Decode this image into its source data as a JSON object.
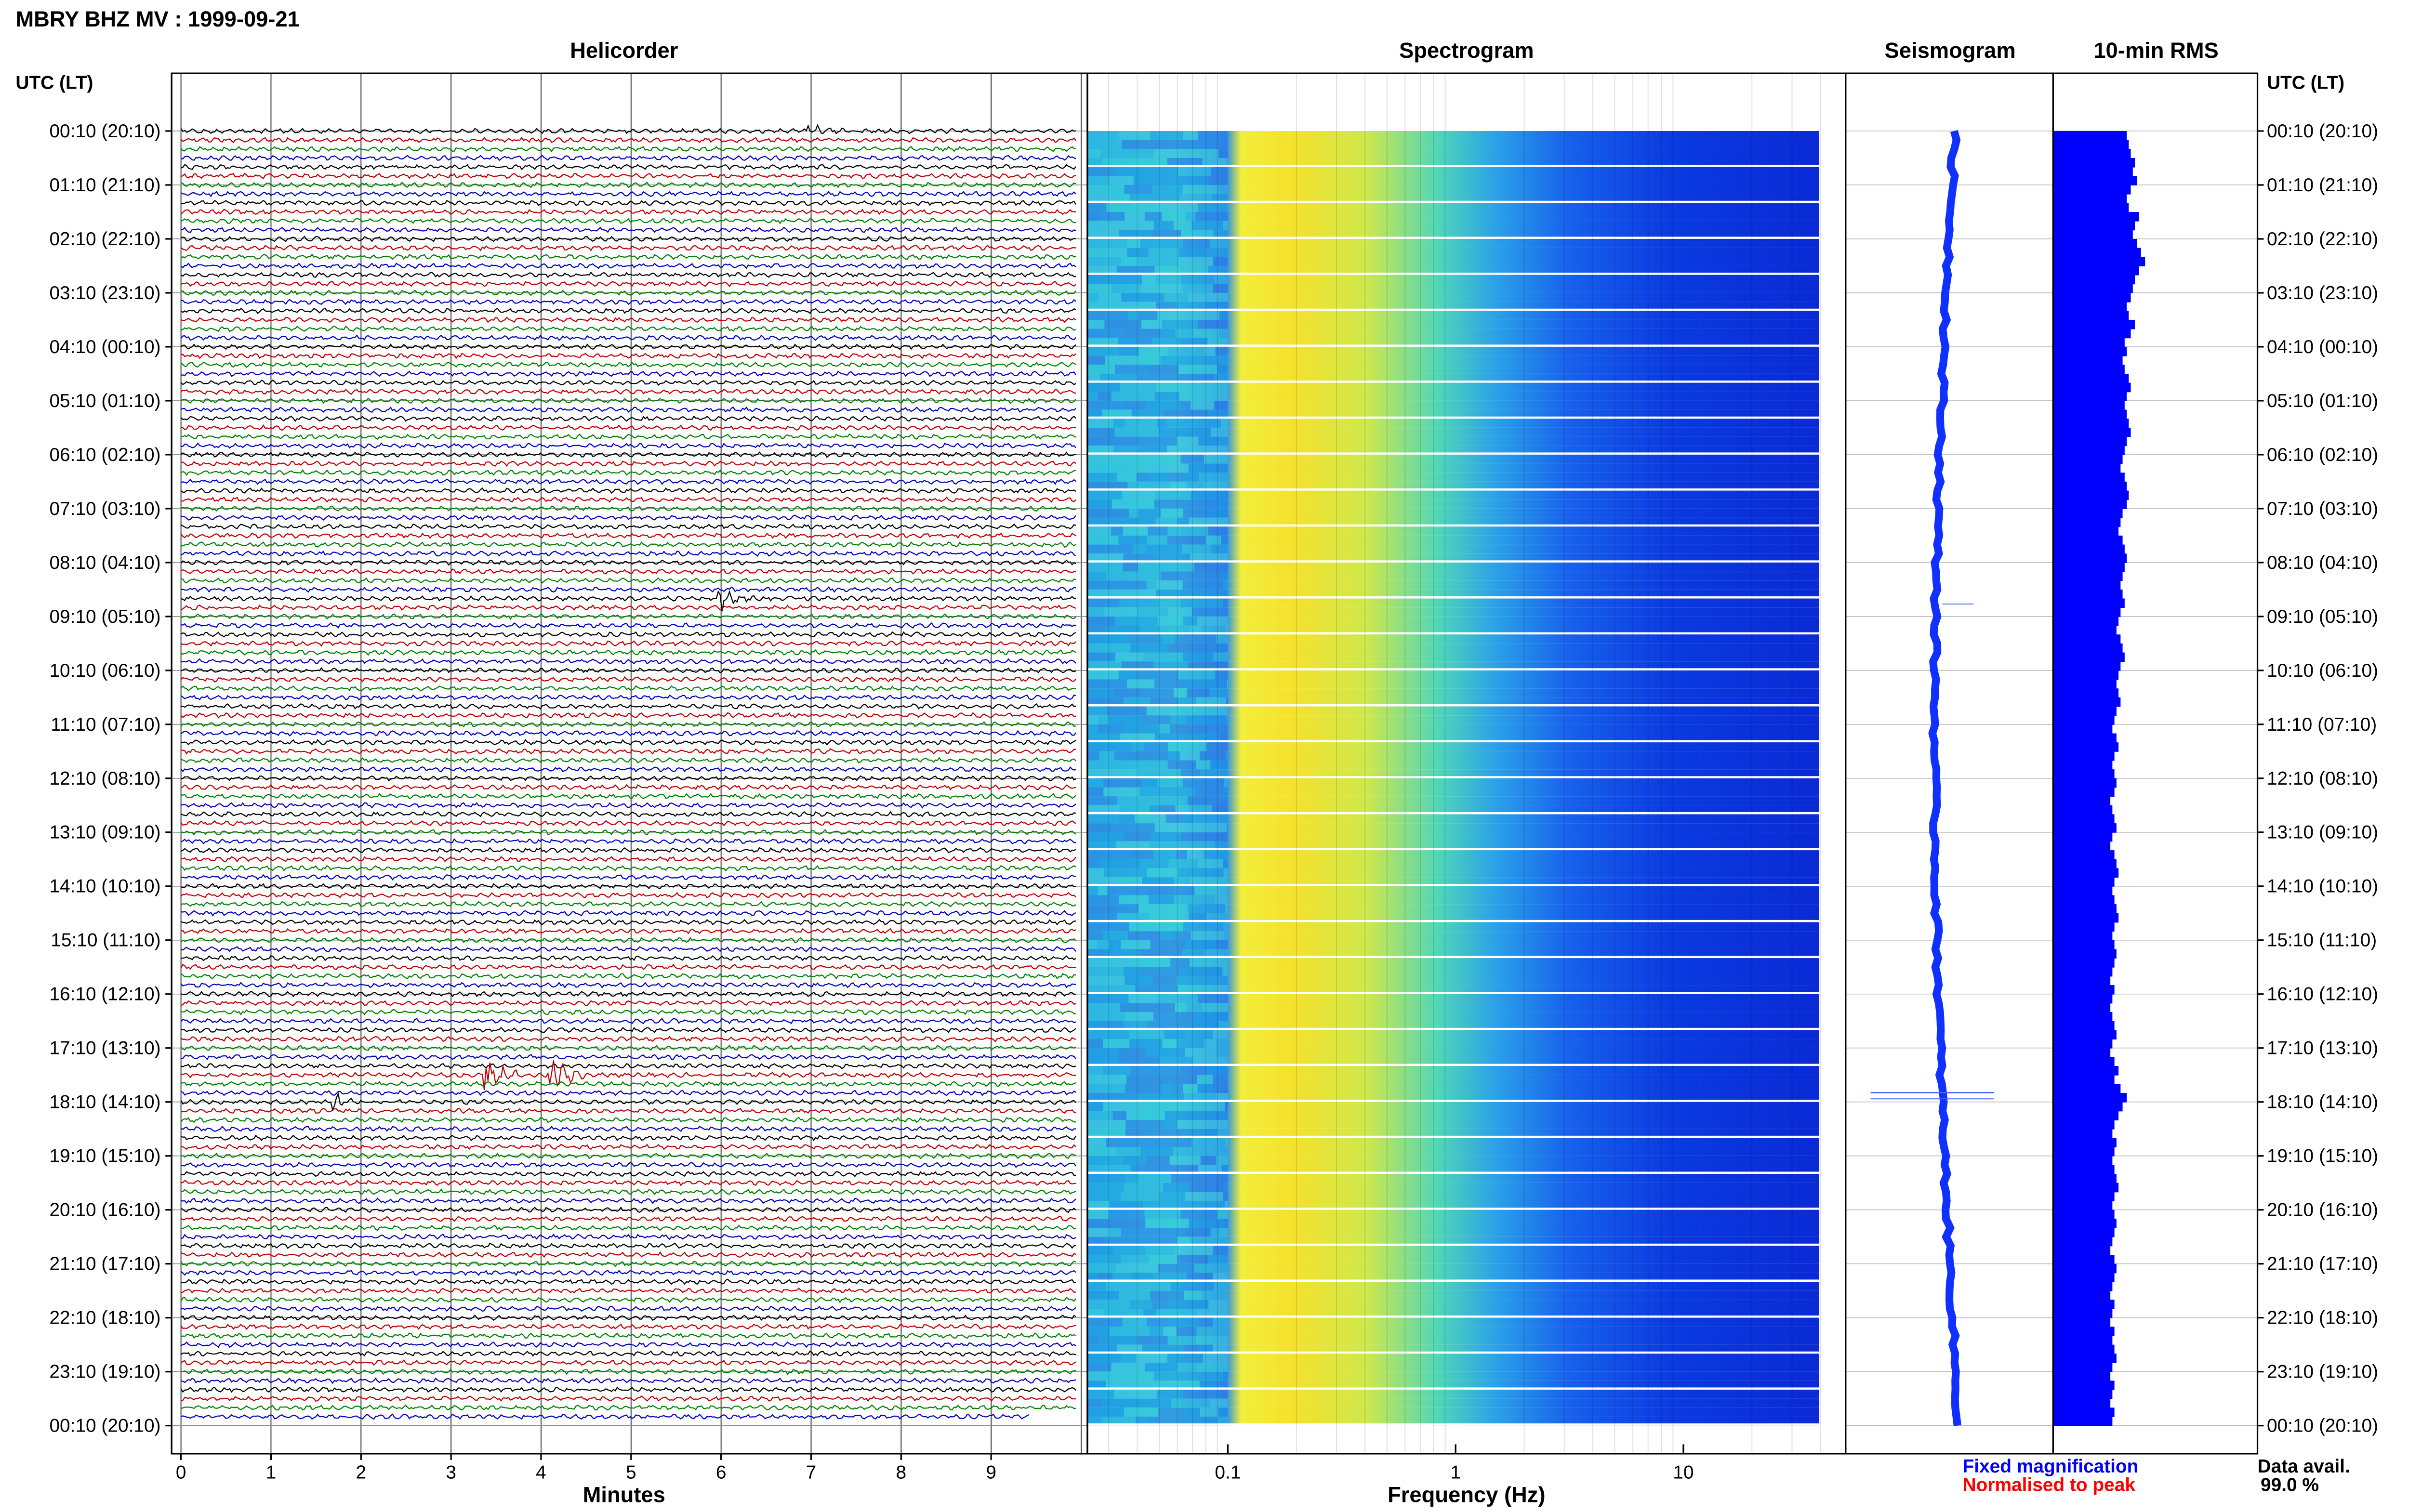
{
  "header": {
    "title": "MBRY BHZ MV : 1999-09-21"
  },
  "panels": {
    "helicorder": "Helicorder",
    "spectrogram": "Spectrogram",
    "seismogram": "Seismogram",
    "rms": "10-min RMS"
  },
  "axis": {
    "left_header": "UTC (LT)",
    "right_header": "UTC (LT)",
    "minutes_label": "Minutes",
    "frequency_label": "Frequency (Hz)"
  },
  "legend": {
    "fixed": "Fixed magnification",
    "normalised": "Normalised to peak",
    "fixed_color": "#0000ff",
    "normalised_color": "#ff0000",
    "data_label": "Data avail.",
    "data_value": "99.0 %"
  },
  "colors": {
    "trace_cycle": [
      "#000000",
      "#c00000",
      "#008000",
      "#0000c0"
    ],
    "rms_bar": "#0000ff"
  },
  "chart_data": [
    {
      "type": "line",
      "title": "Helicorder",
      "xlabel": "Minutes",
      "xlim": [
        0,
        10
      ],
      "x_ticks": [
        "0",
        "1",
        "2",
        "3",
        "4",
        "5",
        "6",
        "7",
        "8",
        "9"
      ],
      "y_tick_labels": [
        "00:10 (20:10)",
        "01:10 (21:10)",
        "02:10 (22:10)",
        "03:10 (23:10)",
        "04:10 (00:10)",
        "05:10 (01:10)",
        "06:10 (02:10)",
        "07:10 (03:10)",
        "08:10 (04:10)",
        "09:10 (05:10)",
        "10:10 (06:10)",
        "11:10 (07:10)",
        "12:10 (08:10)",
        "13:10 (09:10)",
        "14:10 (10:10)",
        "15:10 (11:10)",
        "16:10 (12:10)",
        "17:10 (13:10)",
        "18:10 (14:10)",
        "19:10 (15:10)",
        "20:10 (16:10)",
        "21:10 (17:10)",
        "22:10 (18:10)",
        "23:10 (19:10)",
        "00:10 (20:10)"
      ],
      "traces_per_hour": 6,
      "events": [
        {
          "time": "08:50",
          "minute": 6.0,
          "amplitude": 0.5,
          "color": "black"
        },
        {
          "time": "17:40",
          "minute": 3.4,
          "amplitude": 1.6,
          "color": "green"
        },
        {
          "time": "17:40",
          "minute": 4.1,
          "amplitude": 1.4,
          "color": "blue"
        },
        {
          "time": "18:10",
          "minute": 1.7,
          "amplitude": 0.4,
          "color": "red"
        },
        {
          "time": "00:10",
          "minute": 7.0,
          "amplitude": 0.3,
          "color": "red"
        }
      ]
    },
    {
      "type": "heatmap",
      "title": "Spectrogram",
      "xlabel": "Frequency (Hz)",
      "x_scale": "log",
      "xlim": [
        0.01,
        50
      ],
      "x_ticks": [
        "0.1",
        "1",
        "10"
      ],
      "peak_band_hz": [
        0.12,
        0.3
      ],
      "rows": 144
    },
    {
      "type": "line",
      "title": "Seismogram",
      "legend": [
        "Fixed magnification",
        "Normalised to peak"
      ],
      "event_time": "18:10"
    },
    {
      "type": "bar",
      "title": "10-min RMS",
      "orientation": "horizontal",
      "values_relative": [
        0.36,
        0.37,
        0.38,
        0.4,
        0.39,
        0.41,
        0.38,
        0.36,
        0.37,
        0.42,
        0.4,
        0.39,
        0.41,
        0.43,
        0.45,
        0.42,
        0.4,
        0.39,
        0.38,
        0.36,
        0.37,
        0.4,
        0.38,
        0.35,
        0.36,
        0.34,
        0.35,
        0.37,
        0.38,
        0.36,
        0.35,
        0.36,
        0.37,
        0.38,
        0.36,
        0.35,
        0.34,
        0.33,
        0.35,
        0.36,
        0.37,
        0.36,
        0.34,
        0.33,
        0.32,
        0.34,
        0.35,
        0.36,
        0.35,
        0.34,
        0.33,
        0.34,
        0.35,
        0.33,
        0.32,
        0.31,
        0.33,
        0.34,
        0.35,
        0.33,
        0.32,
        0.31,
        0.32,
        0.33,
        0.31,
        0.3,
        0.29,
        0.31,
        0.32,
        0.3,
        0.29,
        0.3,
        0.31,
        0.3,
        0.28,
        0.29,
        0.3,
        0.31,
        0.29,
        0.28,
        0.3,
        0.31,
        0.32,
        0.3,
        0.29,
        0.3,
        0.31,
        0.32,
        0.3,
        0.29,
        0.3,
        0.31,
        0.3,
        0.29,
        0.28,
        0.3,
        0.29,
        0.28,
        0.29,
        0.3,
        0.31,
        0.29,
        0.28,
        0.3,
        0.32,
        0.3,
        0.33,
        0.36,
        0.34,
        0.32,
        0.3,
        0.29,
        0.31,
        0.3,
        0.29,
        0.3,
        0.31,
        0.32,
        0.3,
        0.29,
        0.3,
        0.31,
        0.3,
        0.29,
        0.28,
        0.3,
        0.31,
        0.3,
        0.29,
        0.28,
        0.3,
        0.29,
        0.28,
        0.3,
        0.29,
        0.3,
        0.31,
        0.29,
        0.28,
        0.3,
        0.29,
        0.28,
        0.3,
        0.29
      ]
    }
  ]
}
